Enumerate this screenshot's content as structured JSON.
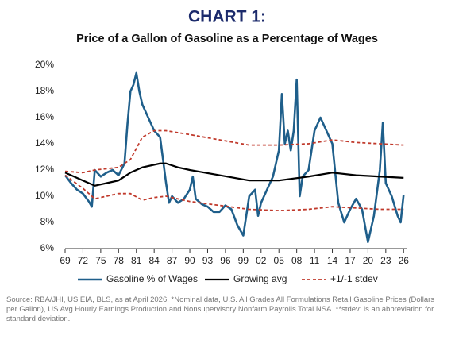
{
  "chart_data": {
    "type": "line",
    "title": "CHART 1:",
    "subtitle": "Price of a Gallon of Gasoline as a Percentage of Wages",
    "note": "Source: RBA/JHI, US EIA, BLS, as at April 2026. *Nominal data, U.S. All Grades All Formulations Retail Gasoline Prices (Dollars per Gallon), US Avg Hourly Earnings Production and Nonsupervisory Nonfarm Payrolls Total NSA. **stdev: is an abbreviation for standard deviation.",
    "xlim": [
      1969,
      2026.5
    ],
    "ylim": [
      6,
      20
    ],
    "xticks": [
      {
        "value": 1969,
        "label": "69"
      },
      {
        "value": 1972,
        "label": "72"
      },
      {
        "value": 1975,
        "label": "75"
      },
      {
        "value": 1978,
        "label": "78"
      },
      {
        "value": 1981,
        "label": "81"
      },
      {
        "value": 1984,
        "label": "84"
      },
      {
        "value": 1987,
        "label": "87"
      },
      {
        "value": 1990,
        "label": "90"
      },
      {
        "value": 1993,
        "label": "93"
      },
      {
        "value": 1996,
        "label": "96"
      },
      {
        "value": 1999,
        "label": "99"
      },
      {
        "value": 2002,
        "label": "02"
      },
      {
        "value": 2005,
        "label": "05"
      },
      {
        "value": 2008,
        "label": "08"
      },
      {
        "value": 2011,
        "label": "11"
      },
      {
        "value": 2014,
        "label": "14"
      },
      {
        "value": 2017,
        "label": "17"
      },
      {
        "value": 2020,
        "label": "20"
      },
      {
        "value": 2023,
        "label": "23"
      },
      {
        "value": 2026,
        "label": "26"
      }
    ],
    "yticks": [
      {
        "value": 6,
        "label": "6%"
      },
      {
        "value": 8,
        "label": "8%"
      },
      {
        "value": 10,
        "label": "10%"
      },
      {
        "value": 12,
        "label": "12%"
      },
      {
        "value": 14,
        "label": "14%"
      },
      {
        "value": 16,
        "label": "16%"
      },
      {
        "value": 18,
        "label": "18%"
      },
      {
        "value": 20,
        "label": "20%"
      }
    ],
    "grid": false,
    "legend_position": "bottom",
    "series": [
      {
        "name": "Gasoline % of Wages",
        "color": "#1f5f8b",
        "line_style": "solid",
        "width": 2.6,
        "x": [
          1969,
          1970,
          1971,
          1972,
          1973,
          1973.5,
          1974,
          1975,
          1976,
          1977,
          1978,
          1979,
          1979.5,
          1980,
          1980.5,
          1981,
          1981.5,
          1982,
          1983,
          1984,
          1985,
          1986,
          1986.5,
          1987,
          1988,
          1989,
          1990,
          1990.5,
          1991,
          1992,
          1993,
          1994,
          1995,
          1996,
          1997,
          1998,
          1999,
          1999.5,
          2000,
          2001,
          2001.5,
          2002,
          2003,
          2004,
          2005,
          2005.5,
          2006,
          2006.5,
          2007,
          2007.5,
          2008,
          2008.5,
          2009,
          2010,
          2011,
          2012,
          2013,
          2014,
          2015,
          2016,
          2017,
          2018,
          2019,
          2020,
          2021,
          2022,
          2022.5,
          2023,
          2024,
          2025,
          2025.5,
          2026
        ],
        "values": [
          11.6,
          11.0,
          10.5,
          10.2,
          9.6,
          9.2,
          12.0,
          11.5,
          11.8,
          12.0,
          11.6,
          12.5,
          15.5,
          18.0,
          18.5,
          19.4,
          18.0,
          17.0,
          16.0,
          15.0,
          14.5,
          11.0,
          9.5,
          10.0,
          9.5,
          9.8,
          10.5,
          11.5,
          9.8,
          9.4,
          9.2,
          8.8,
          8.8,
          9.3,
          9.0,
          7.8,
          7.0,
          8.5,
          10.0,
          10.5,
          8.5,
          9.5,
          10.5,
          11.5,
          13.5,
          17.8,
          14.0,
          15.0,
          13.5,
          15.0,
          18.9,
          10.0,
          11.5,
          12.0,
          15.0,
          16.0,
          15.0,
          14.0,
          9.5,
          8.0,
          9.0,
          9.8,
          9.0,
          6.5,
          8.5,
          12.0,
          15.6,
          11.0,
          10.0,
          8.5,
          8.0,
          10.1
        ]
      },
      {
        "name": "Growing avg",
        "color": "#000000",
        "line_style": "solid",
        "width": 2.2,
        "x": [
          1969,
          1972,
          1974,
          1976,
          1978,
          1980,
          1982,
          1985,
          1986,
          1988,
          1990,
          1995,
          2000,
          2005,
          2010,
          2014,
          2018,
          2022,
          2026
        ],
        "values": [
          11.8,
          11.2,
          10.8,
          11.0,
          11.2,
          11.8,
          12.2,
          12.5,
          12.5,
          12.2,
          12.0,
          11.6,
          11.2,
          11.2,
          11.5,
          11.8,
          11.6,
          11.5,
          11.4
        ]
      },
      {
        "name": "+1/-1 stdev",
        "color": "#c0392b",
        "line_style": "dashed",
        "width": 1.8,
        "x": [
          1969,
          1972,
          1974,
          1976,
          1978,
          1980,
          1982,
          1984,
          1986,
          1990,
          1995,
          2000,
          2005,
          2010,
          2014,
          2018,
          2022,
          2026
        ],
        "values": [
          11.9,
          11.8,
          12.0,
          12.1,
          12.2,
          12.8,
          14.5,
          15.0,
          15.0,
          14.7,
          14.3,
          13.9,
          13.9,
          14.0,
          14.3,
          14.1,
          14.0,
          13.9
        ]
      },
      {
        "name": null,
        "color": "#c0392b",
        "line_style": "dashed",
        "width": 1.8,
        "x": [
          1969,
          1972,
          1974,
          1976,
          1978,
          1980,
          1982,
          1984,
          1986,
          1990,
          1995,
          2000,
          2005,
          2010,
          2014,
          2018,
          2022,
          2026
        ],
        "values": [
          11.6,
          10.6,
          9.8,
          10.0,
          10.2,
          10.2,
          9.7,
          9.9,
          10.0,
          9.6,
          9.3,
          9.0,
          8.9,
          9.0,
          9.2,
          9.1,
          9.0,
          9.0
        ]
      }
    ]
  }
}
